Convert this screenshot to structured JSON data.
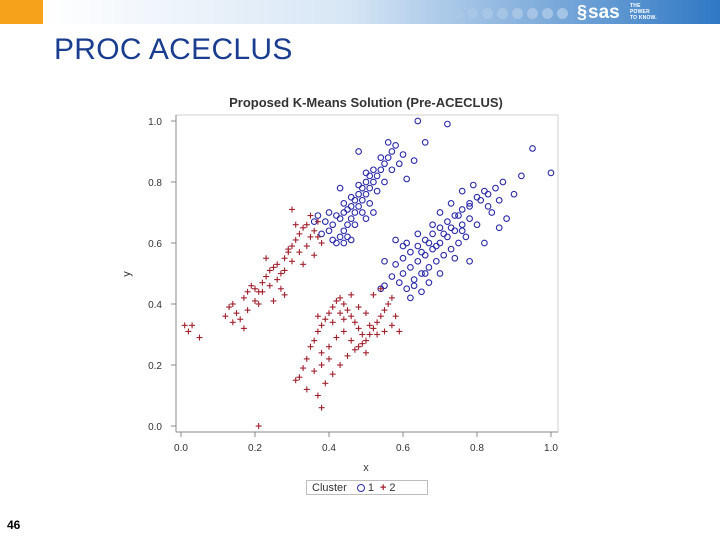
{
  "slide": {
    "title": "PROC ACECLUS",
    "page_number": "46"
  },
  "header": {
    "logo_text": "sas",
    "tagline_lines": [
      "THE",
      "POWER",
      "TO KNOW."
    ],
    "accent_color": "#f7a21b",
    "band_color": "#2f78c4"
  },
  "chart_data": {
    "type": "scatter",
    "title": "Proposed K-Means Solution (Pre-ACECLUS)",
    "xlabel": "x",
    "ylabel": "y",
    "xlim": [
      0.0,
      1.0
    ],
    "ylim": [
      0.0,
      1.0
    ],
    "xticks": [
      "0.0",
      "0.2",
      "0.4",
      "0.6",
      "0.8",
      "1.0"
    ],
    "yticks": [
      "0.0",
      "0.2",
      "0.4",
      "0.6",
      "0.8",
      "1.0"
    ],
    "grid": false,
    "legend": {
      "title": "Cluster",
      "placement": "bottom"
    },
    "series": [
      {
        "name": "1",
        "marker": "circle",
        "color": "#2a2aa8",
        "points": [
          [
            0.42,
            0.6
          ],
          [
            0.43,
            0.62
          ],
          [
            0.44,
            0.64
          ],
          [
            0.45,
            0.66
          ],
          [
            0.46,
            0.68
          ],
          [
            0.47,
            0.7
          ],
          [
            0.48,
            0.72
          ],
          [
            0.49,
            0.74
          ],
          [
            0.5,
            0.76
          ],
          [
            0.51,
            0.78
          ],
          [
            0.52,
            0.8
          ],
          [
            0.53,
            0.82
          ],
          [
            0.54,
            0.84
          ],
          [
            0.55,
            0.86
          ],
          [
            0.56,
            0.88
          ],
          [
            0.57,
            0.9
          ],
          [
            0.58,
            0.92
          ],
          [
            0.44,
            0.7
          ],
          [
            0.46,
            0.72
          ],
          [
            0.48,
            0.76
          ],
          [
            0.5,
            0.8
          ],
          [
            0.52,
            0.84
          ],
          [
            0.54,
            0.88
          ],
          [
            0.4,
            0.64
          ],
          [
            0.41,
            0.66
          ],
          [
            0.43,
            0.68
          ],
          [
            0.45,
            0.71
          ],
          [
            0.47,
            0.74
          ],
          [
            0.49,
            0.78
          ],
          [
            0.51,
            0.82
          ],
          [
            0.39,
            0.67
          ],
          [
            0.42,
            0.69
          ],
          [
            0.44,
            0.73
          ],
          [
            0.46,
            0.75
          ],
          [
            0.48,
            0.79
          ],
          [
            0.5,
            0.83
          ],
          [
            0.36,
            0.67
          ],
          [
            0.37,
            0.69
          ],
          [
            0.4,
            0.7
          ],
          [
            0.45,
            0.62
          ],
          [
            0.47,
            0.66
          ],
          [
            0.49,
            0.7
          ],
          [
            0.51,
            0.73
          ],
          [
            0.53,
            0.77
          ],
          [
            0.55,
            0.8
          ],
          [
            0.57,
            0.84
          ],
          [
            0.6,
            0.89
          ],
          [
            0.61,
            0.81
          ],
          [
            0.48,
            0.9
          ],
          [
            0.43,
            0.78
          ],
          [
            0.38,
            0.63
          ],
          [
            0.41,
            0.61
          ],
          [
            0.44,
            0.6
          ],
          [
            0.46,
            0.61
          ],
          [
            0.5,
            0.68
          ],
          [
            0.52,
            0.7
          ],
          [
            0.59,
            0.86
          ],
          [
            0.56,
            0.93
          ],
          [
            0.63,
            0.87
          ],
          [
            0.66,
            0.93
          ],
          [
            0.72,
            0.99
          ],
          [
            0.64,
            1.0
          ],
          [
            0.58,
            0.53
          ],
          [
            0.6,
            0.55
          ],
          [
            0.62,
            0.57
          ],
          [
            0.64,
            0.59
          ],
          [
            0.66,
            0.61
          ],
          [
            0.68,
            0.63
          ],
          [
            0.7,
            0.65
          ],
          [
            0.72,
            0.67
          ],
          [
            0.74,
            0.69
          ],
          [
            0.76,
            0.71
          ],
          [
            0.78,
            0.73
          ],
          [
            0.8,
            0.75
          ],
          [
            0.82,
            0.77
          ],
          [
            0.6,
            0.5
          ],
          [
            0.62,
            0.52
          ],
          [
            0.64,
            0.54
          ],
          [
            0.66,
            0.56
          ],
          [
            0.68,
            0.58
          ],
          [
            0.7,
            0.6
          ],
          [
            0.72,
            0.62
          ],
          [
            0.74,
            0.64
          ],
          [
            0.76,
            0.66
          ],
          [
            0.78,
            0.68
          ],
          [
            0.63,
            0.48
          ],
          [
            0.65,
            0.5
          ],
          [
            0.67,
            0.52
          ],
          [
            0.69,
            0.54
          ],
          [
            0.71,
            0.56
          ],
          [
            0.73,
            0.58
          ],
          [
            0.75,
            0.6
          ],
          [
            0.77,
            0.62
          ],
          [
            0.61,
            0.45
          ],
          [
            0.63,
            0.46
          ],
          [
            0.65,
            0.44
          ],
          [
            0.67,
            0.47
          ],
          [
            0.59,
            0.47
          ],
          [
            0.57,
            0.49
          ],
          [
            0.55,
            0.46
          ],
          [
            0.62,
            0.42
          ],
          [
            0.66,
            0.5
          ],
          [
            0.69,
            0.59
          ],
          [
            0.71,
            0.63
          ],
          [
            0.73,
            0.65
          ],
          [
            0.75,
            0.69
          ],
          [
            0.78,
            0.72
          ],
          [
            0.81,
            0.74
          ],
          [
            0.83,
            0.76
          ],
          [
            0.85,
            0.78
          ],
          [
            0.87,
            0.8
          ],
          [
            0.86,
            0.74
          ],
          [
            0.84,
            0.7
          ],
          [
            0.8,
            0.66
          ],
          [
            0.76,
            0.64
          ],
          [
            0.7,
            0.5
          ],
          [
            0.74,
            0.55
          ],
          [
            0.78,
            0.54
          ],
          [
            0.82,
            0.6
          ],
          [
            0.86,
            0.65
          ],
          [
            0.88,
            0.68
          ],
          [
            0.9,
            0.76
          ],
          [
            0.92,
            0.82
          ],
          [
            0.95,
            0.91
          ],
          [
            1.0,
            0.83
          ],
          [
            0.55,
            0.54
          ],
          [
            0.54,
            0.45
          ],
          [
            0.58,
            0.61
          ],
          [
            0.61,
            0.6
          ],
          [
            0.64,
            0.63
          ],
          [
            0.68,
            0.66
          ],
          [
            0.7,
            0.7
          ],
          [
            0.73,
            0.73
          ],
          [
            0.76,
            0.77
          ],
          [
            0.79,
            0.79
          ],
          [
            0.83,
            0.72
          ],
          [
            0.65,
            0.57
          ],
          [
            0.67,
            0.6
          ],
          [
            0.6,
            0.59
          ]
        ]
      },
      {
        "name": "2",
        "marker": "plus",
        "color": "#a0202c",
        "points": [
          [
            0.01,
            0.33
          ],
          [
            0.02,
            0.31
          ],
          [
            0.03,
            0.33
          ],
          [
            0.05,
            0.29
          ],
          [
            0.13,
            0.39
          ],
          [
            0.14,
            0.4
          ],
          [
            0.15,
            0.37
          ],
          [
            0.16,
            0.35
          ],
          [
            0.12,
            0.36
          ],
          [
            0.14,
            0.34
          ],
          [
            0.17,
            0.42
          ],
          [
            0.18,
            0.44
          ],
          [
            0.19,
            0.46
          ],
          [
            0.2,
            0.45
          ],
          [
            0.21,
            0.44
          ],
          [
            0.22,
            0.47
          ],
          [
            0.23,
            0.49
          ],
          [
            0.24,
            0.51
          ],
          [
            0.25,
            0.52
          ],
          [
            0.26,
            0.53
          ],
          [
            0.27,
            0.5
          ],
          [
            0.28,
            0.55
          ],
          [
            0.29,
            0.57
          ],
          [
            0.3,
            0.59
          ],
          [
            0.31,
            0.61
          ],
          [
            0.32,
            0.63
          ],
          [
            0.33,
            0.65
          ],
          [
            0.34,
            0.66
          ],
          [
            0.35,
            0.62
          ],
          [
            0.36,
            0.64
          ],
          [
            0.37,
            0.67
          ],
          [
            0.38,
            0.6
          ],
          [
            0.21,
            0.4
          ],
          [
            0.22,
            0.44
          ],
          [
            0.24,
            0.46
          ],
          [
            0.26,
            0.48
          ],
          [
            0.28,
            0.51
          ],
          [
            0.3,
            0.54
          ],
          [
            0.32,
            0.57
          ],
          [
            0.34,
            0.59
          ],
          [
            0.36,
            0.56
          ],
          [
            0.33,
            0.53
          ],
          [
            0.25,
            0.41
          ],
          [
            0.27,
            0.45
          ],
          [
            0.29,
            0.58
          ],
          [
            0.31,
            0.66
          ],
          [
            0.35,
            0.69
          ],
          [
            0.37,
            0.62
          ],
          [
            0.17,
            0.32
          ],
          [
            0.18,
            0.38
          ],
          [
            0.2,
            0.41
          ],
          [
            0.3,
            0.71
          ],
          [
            0.28,
            0.43
          ],
          [
            0.23,
            0.55
          ],
          [
            0.21,
            0.0
          ],
          [
            0.31,
            0.15
          ],
          [
            0.32,
            0.16
          ],
          [
            0.33,
            0.19
          ],
          [
            0.34,
            0.22
          ],
          [
            0.35,
            0.26
          ],
          [
            0.36,
            0.28
          ],
          [
            0.37,
            0.31
          ],
          [
            0.38,
            0.33
          ],
          [
            0.39,
            0.35
          ],
          [
            0.4,
            0.37
          ],
          [
            0.41,
            0.39
          ],
          [
            0.42,
            0.41
          ],
          [
            0.43,
            0.42
          ],
          [
            0.44,
            0.4
          ],
          [
            0.45,
            0.38
          ],
          [
            0.46,
            0.36
          ],
          [
            0.47,
            0.34
          ],
          [
            0.48,
            0.32
          ],
          [
            0.49,
            0.3
          ],
          [
            0.5,
            0.28
          ],
          [
            0.51,
            0.3
          ],
          [
            0.52,
            0.32
          ],
          [
            0.53,
            0.34
          ],
          [
            0.54,
            0.36
          ],
          [
            0.55,
            0.38
          ],
          [
            0.56,
            0.4
          ],
          [
            0.57,
            0.42
          ],
          [
            0.58,
            0.36
          ],
          [
            0.59,
            0.31
          ],
          [
            0.38,
            0.24
          ],
          [
            0.4,
            0.26
          ],
          [
            0.42,
            0.29
          ],
          [
            0.44,
            0.31
          ],
          [
            0.46,
            0.28
          ],
          [
            0.48,
            0.26
          ],
          [
            0.5,
            0.24
          ],
          [
            0.36,
            0.18
          ],
          [
            0.38,
            0.2
          ],
          [
            0.4,
            0.22
          ],
          [
            0.34,
            0.12
          ],
          [
            0.37,
            0.1
          ],
          [
            0.39,
            0.14
          ],
          [
            0.41,
            0.17
          ],
          [
            0.43,
            0.2
          ],
          [
            0.45,
            0.23
          ],
          [
            0.47,
            0.25
          ],
          [
            0.49,
            0.27
          ],
          [
            0.51,
            0.33
          ],
          [
            0.53,
            0.3
          ],
          [
            0.55,
            0.31
          ],
          [
            0.57,
            0.33
          ],
          [
            0.44,
            0.35
          ],
          [
            0.46,
            0.43
          ],
          [
            0.48,
            0.39
          ],
          [
            0.5,
            0.37
          ],
          [
            0.52,
            0.43
          ],
          [
            0.54,
            0.45
          ],
          [
            0.38,
            0.06
          ],
          [
            0.41,
            0.34
          ],
          [
            0.43,
            0.37
          ],
          [
            0.37,
            0.36
          ]
        ]
      }
    ]
  }
}
